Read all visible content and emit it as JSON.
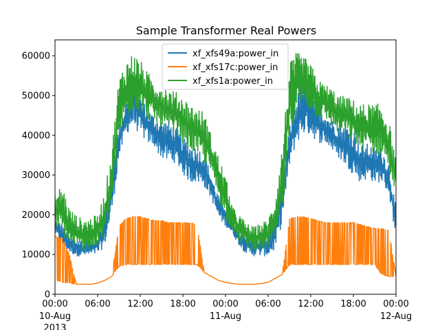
{
  "chart_data": {
    "type": "line",
    "title": "Sample Transformer Real Powers",
    "xlabel": "",
    "ylabel": "",
    "xlim": [
      "2013-08-10 00:00",
      "2013-08-12 00:00"
    ],
    "ylim": [
      0,
      64000
    ],
    "grid": false,
    "legend_position": "top-center",
    "x_ticks": [
      {
        "at": "2013-08-10 00:00",
        "label": "00:00",
        "sub": "10-Aug",
        "sub2": "2013"
      },
      {
        "at": "2013-08-10 06:00",
        "label": "06:00",
        "sub": "",
        "sub2": ""
      },
      {
        "at": "2013-08-10 12:00",
        "label": "12:00",
        "sub": "",
        "sub2": ""
      },
      {
        "at": "2013-08-10 18:00",
        "label": "18:00",
        "sub": "",
        "sub2": ""
      },
      {
        "at": "2013-08-11 00:00",
        "label": "00:00",
        "sub": "11-Aug",
        "sub2": ""
      },
      {
        "at": "2013-08-11 06:00",
        "label": "06:00",
        "sub": "",
        "sub2": ""
      },
      {
        "at": "2013-08-11 12:00",
        "label": "12:00",
        "sub": "",
        "sub2": ""
      },
      {
        "at": "2013-08-11 18:00",
        "label": "18:00",
        "sub": "",
        "sub2": ""
      },
      {
        "at": "2013-08-12 00:00",
        "label": "00:00",
        "sub": "12-Aug",
        "sub2": ""
      }
    ],
    "y_ticks": [
      0,
      10000,
      20000,
      30000,
      40000,
      50000,
      60000
    ],
    "series": [
      {
        "name": "xf_xfs49a:power_in",
        "color": "#1f77b4",
        "x": [
          "2013-08-10 00:00",
          "2013-08-10 01:00",
          "2013-08-10 02:00",
          "2013-08-10 03:00",
          "2013-08-10 04:00",
          "2013-08-10 05:00",
          "2013-08-10 06:00",
          "2013-08-10 07:00",
          "2013-08-10 08:00",
          "2013-08-10 09:00",
          "2013-08-10 10:00",
          "2013-08-10 11:00",
          "2013-08-10 12:00",
          "2013-08-10 13:00",
          "2013-08-10 14:00",
          "2013-08-10 15:00",
          "2013-08-10 16:00",
          "2013-08-10 17:00",
          "2013-08-10 18:00",
          "2013-08-10 19:00",
          "2013-08-10 20:00",
          "2013-08-10 21:00",
          "2013-08-10 22:00",
          "2013-08-10 23:00",
          "2013-08-11 00:00",
          "2013-08-11 01:00",
          "2013-08-11 02:00",
          "2013-08-11 03:00",
          "2013-08-11 04:00",
          "2013-08-11 05:00",
          "2013-08-11 06:00",
          "2013-08-11 07:00",
          "2013-08-11 08:00",
          "2013-08-11 09:00",
          "2013-08-11 10:00",
          "2013-08-11 11:00",
          "2013-08-11 12:00",
          "2013-08-11 13:00",
          "2013-08-11 14:00",
          "2013-08-11 15:00",
          "2013-08-11 16:00",
          "2013-08-11 17:00",
          "2013-08-11 18:00",
          "2013-08-11 19:00",
          "2013-08-11 20:00",
          "2013-08-11 21:00",
          "2013-08-11 22:00",
          "2013-08-11 23:00",
          "2013-08-12 00:00"
        ],
        "min": [
          15000,
          12000,
          10500,
          9500,
          9500,
          9500,
          10000,
          12000,
          20000,
          34000,
          40000,
          42000,
          40000,
          38000,
          37000,
          34000,
          33000,
          33000,
          30000,
          28000,
          28000,
          27000,
          24000,
          19000,
          17000,
          15000,
          12000,
          10000,
          9500,
          9500,
          9500,
          11000,
          18000,
          32000,
          38000,
          40000,
          40000,
          38000,
          38000,
          36000,
          34000,
          32000,
          30000,
          28000,
          29000,
          28000,
          28000,
          25000,
          14000
        ],
        "max": [
          19000,
          18000,
          14500,
          14000,
          13500,
          14000,
          15000,
          20000,
          32000,
          43000,
          49000,
          55000,
          50000,
          47000,
          45000,
          44000,
          44000,
          42000,
          40000,
          38000,
          37000,
          36000,
          30000,
          25000,
          23000,
          18000,
          16000,
          15000,
          14500,
          15000,
          15500,
          20000,
          30000,
          42000,
          50000,
          55000,
          52000,
          48000,
          46000,
          44000,
          43000,
          43000,
          42000,
          38000,
          38000,
          37000,
          37000,
          33000,
          22000
        ]
      },
      {
        "name": "xf_xfs17c:power_in",
        "color": "#ff7f0e",
        "x": [
          "2013-08-10 00:00",
          "2013-08-10 01:00",
          "2013-08-10 02:00",
          "2013-08-10 03:00",
          "2013-08-10 04:00",
          "2013-08-10 05:00",
          "2013-08-10 06:00",
          "2013-08-10 07:00",
          "2013-08-10 08:00",
          "2013-08-10 09:00",
          "2013-08-10 10:00",
          "2013-08-10 11:00",
          "2013-08-10 12:00",
          "2013-08-10 13:00",
          "2013-08-10 14:00",
          "2013-08-10 15:00",
          "2013-08-10 16:00",
          "2013-08-10 17:00",
          "2013-08-10 18:00",
          "2013-08-10 19:00",
          "2013-08-10 20:00",
          "2013-08-10 21:00",
          "2013-08-10 22:00",
          "2013-08-10 23:00",
          "2013-08-11 00:00",
          "2013-08-11 01:00",
          "2013-08-11 02:00",
          "2013-08-11 03:00",
          "2013-08-11 04:00",
          "2013-08-11 05:00",
          "2013-08-11 06:00",
          "2013-08-11 07:00",
          "2013-08-11 08:00",
          "2013-08-11 09:00",
          "2013-08-11 10:00",
          "2013-08-11 11:00",
          "2013-08-11 12:00",
          "2013-08-11 13:00",
          "2013-08-11 14:00",
          "2013-08-11 15:00",
          "2013-08-11 16:00",
          "2013-08-11 17:00",
          "2013-08-11 18:00",
          "2013-08-11 19:00",
          "2013-08-11 20:00",
          "2013-08-11 21:00",
          "2013-08-11 22:00",
          "2013-08-11 23:00",
          "2013-08-12 00:00"
        ],
        "min": [
          3500,
          3000,
          2800,
          2500,
          2500,
          2500,
          2800,
          3500,
          4500,
          7000,
          7500,
          7500,
          7500,
          7500,
          7500,
          7500,
          7500,
          7500,
          7500,
          7500,
          7500,
          5500,
          4500,
          3500,
          3000,
          2700,
          2500,
          2500,
          2500,
          2700,
          3000,
          4000,
          5000,
          7500,
          7500,
          7500,
          7500,
          7500,
          7500,
          7500,
          7500,
          7500,
          7500,
          7500,
          7500,
          7500,
          5000,
          4500,
          4500
        ],
        "max": [
          14500,
          14000,
          10000,
          2500,
          2500,
          2500,
          2800,
          3500,
          4500,
          17000,
          19000,
          19500,
          19500,
          19000,
          18500,
          18500,
          18000,
          18000,
          18000,
          18000,
          17500,
          5500,
          4500,
          3500,
          3000,
          2700,
          2500,
          2500,
          2500,
          2700,
          3000,
          4000,
          5000,
          19000,
          19500,
          19500,
          19000,
          18500,
          18000,
          18000,
          18000,
          18000,
          18000,
          17500,
          17000,
          16500,
          16500,
          16000,
          4500
        ]
      },
      {
        "name": "xf_xfs1a:power_in",
        "color": "#2ca02c",
        "x": [
          "2013-08-10 00:00",
          "2013-08-10 01:00",
          "2013-08-10 02:00",
          "2013-08-10 03:00",
          "2013-08-10 04:00",
          "2013-08-10 05:00",
          "2013-08-10 06:00",
          "2013-08-10 07:00",
          "2013-08-10 08:00",
          "2013-08-10 09:00",
          "2013-08-10 10:00",
          "2013-08-10 11:00",
          "2013-08-10 12:00",
          "2013-08-10 13:00",
          "2013-08-10 14:00",
          "2013-08-10 15:00",
          "2013-08-10 16:00",
          "2013-08-10 17:00",
          "2013-08-10 18:00",
          "2013-08-10 19:00",
          "2013-08-10 20:00",
          "2013-08-10 21:00",
          "2013-08-10 22:00",
          "2013-08-10 23:00",
          "2013-08-11 00:00",
          "2013-08-11 01:00",
          "2013-08-11 02:00",
          "2013-08-11 03:00",
          "2013-08-11 04:00",
          "2013-08-11 05:00",
          "2013-08-11 06:00",
          "2013-08-11 07:00",
          "2013-08-11 08:00",
          "2013-08-11 09:00",
          "2013-08-11 10:00",
          "2013-08-11 11:00",
          "2013-08-11 12:00",
          "2013-08-11 13:00",
          "2013-08-11 14:00",
          "2013-08-11 15:00",
          "2013-08-11 16:00",
          "2013-08-11 17:00",
          "2013-08-11 18:00",
          "2013-08-11 19:00",
          "2013-08-11 20:00",
          "2013-08-11 21:00",
          "2013-08-11 22:00",
          "2013-08-11 23:00",
          "2013-08-12 00:00"
        ],
        "min": [
          17000,
          15000,
          12000,
          11000,
          11000,
          11000,
          12000,
          14000,
          22000,
          38000,
          44000,
          46000,
          46000,
          44000,
          43000,
          42000,
          40000,
          40000,
          38000,
          36000,
          35000,
          33000,
          30000,
          24000,
          19000,
          16000,
          13000,
          11500,
          11000,
          11000,
          11500,
          13000,
          20000,
          38000,
          46000,
          48000,
          46000,
          44000,
          44000,
          42000,
          40000,
          40000,
          38000,
          36000,
          36000,
          35000,
          35000,
          31000,
          24000
        ],
        "max": [
          25000,
          28000,
          22000,
          20000,
          19000,
          19500,
          20000,
          26000,
          37000,
          55000,
          59000,
          61000,
          59000,
          56000,
          54000,
          53000,
          52000,
          51000,
          50000,
          48000,
          47000,
          46000,
          40000,
          35000,
          30000,
          22000,
          20000,
          18000,
          17000,
          18000,
          19000,
          25000,
          38000,
          58000,
          61000,
          60000,
          58000,
          54000,
          53000,
          52000,
          50000,
          50000,
          49000,
          48000,
          48000,
          48000,
          48000,
          44000,
          34000
        ]
      }
    ]
  }
}
